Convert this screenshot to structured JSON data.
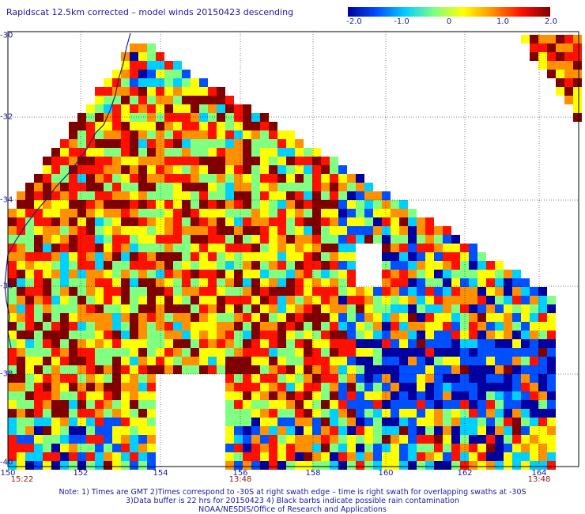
{
  "title": "Rapidscat 12.5km corrected – model winds 20150423 descending",
  "colorbar": {
    "ticks": [
      "-2.0",
      "-1.0",
      "0",
      "1.0",
      "2.0"
    ],
    "colors": [
      "#0000a0",
      "#0050ff",
      "#00d0ff",
      "#80ff80",
      "#ffff00",
      "#ff9000",
      "#ff1000",
      "#800000"
    ]
  },
  "axes": {
    "lon_labels": [
      "150",
      "152",
      "154",
      "156",
      "158",
      "160",
      "162",
      "164"
    ],
    "lat_labels": [
      "-30",
      "-32",
      "-34",
      "-36",
      "-38",
      "-40"
    ]
  },
  "time_labels": [
    "15:22",
    "13:48",
    "13:48"
  ],
  "notes": [
    "Note: 1) Times are GMT 2)Times correspond to -30S at right swath edge – time is right swath for overlapping swaths at -30S",
    "3)Data buffer is 22 hrs for 20150423 4) Black barbs indicate possible rain contamination",
    "NOAA/NESDIS/Office of Research and Applications"
  ]
}
